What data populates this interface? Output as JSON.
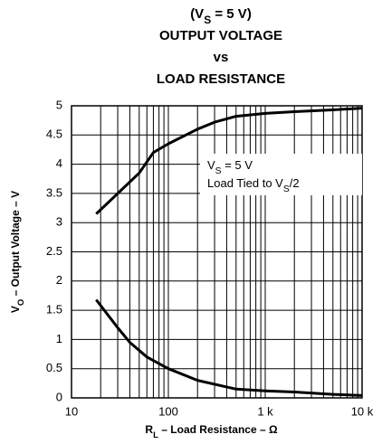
{
  "chart_data": {
    "type": "line",
    "title": [
      [
        "(V",
        "S",
        " = 5 V)"
      ],
      [
        "OUTPUT VOLTAGE"
      ],
      [
        "vs"
      ],
      [
        "LOAD RESISTANCE"
      ]
    ],
    "xlabel": [
      "R",
      "L",
      " – Load Resistance – Ω"
    ],
    "ylabel": [
      "V",
      "O",
      " – Output Voltage – V"
    ],
    "annotation": [
      [
        "V",
        "S",
        " = 5 V"
      ],
      [
        "Load Tied to V",
        "S",
        "/2"
      ]
    ],
    "xscale": "log",
    "xlim": [
      10,
      10000
    ],
    "xticks": [
      10,
      100,
      {
        "value": 1000,
        "label": "1 k"
      },
      {
        "value": 10000,
        "label": "10 k"
      }
    ],
    "ylim": [
      0,
      5
    ],
    "yticks": [
      0,
      0.5,
      1,
      1.5,
      2,
      2.5,
      3,
      3.5,
      4,
      4.5,
      5
    ],
    "grid": true,
    "minor_grid": true,
    "series": [
      {
        "color": "#000000",
        "x": [
          18,
          30,
          50,
          70,
          100,
          200,
          300,
          500,
          1000,
          2000,
          5000,
          10000
        ],
        "values": [
          3.15,
          3.5,
          3.85,
          4.2,
          4.35,
          4.6,
          4.72,
          4.82,
          4.87,
          4.9,
          4.93,
          4.96
        ]
      },
      {
        "color": "#000000",
        "x": [
          18,
          30,
          40,
          60,
          100,
          200,
          500,
          1000,
          2000,
          5000,
          10000
        ],
        "values": [
          1.68,
          1.2,
          0.95,
          0.7,
          0.5,
          0.3,
          0.15,
          0.12,
          0.1,
          0.06,
          0.04
        ]
      }
    ]
  }
}
